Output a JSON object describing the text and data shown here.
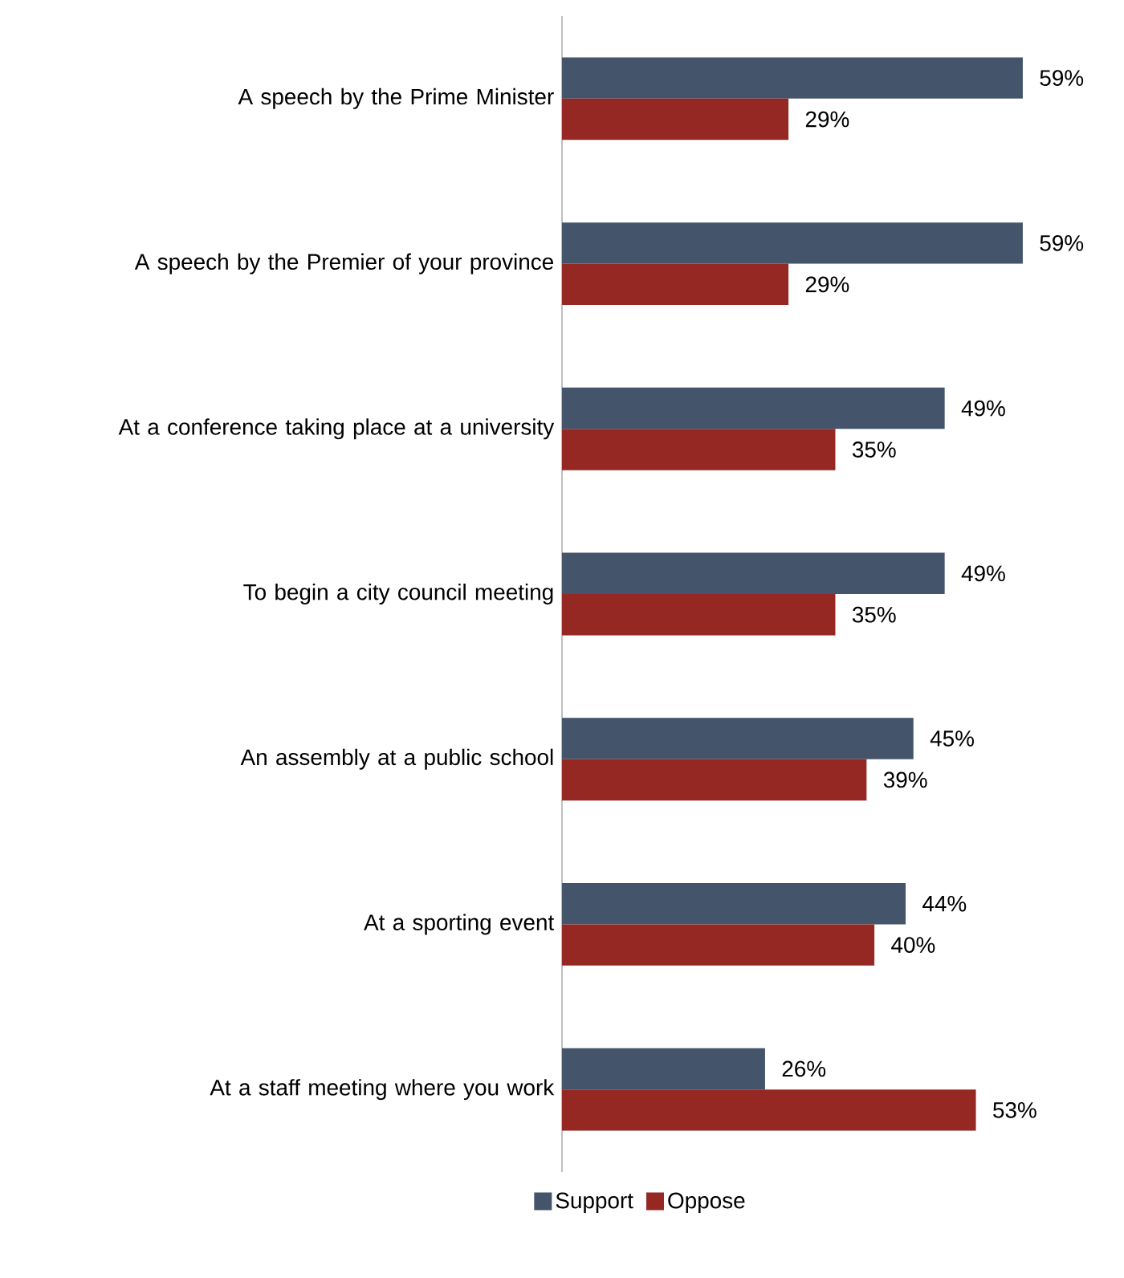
{
  "chart_data": {
    "type": "bar",
    "orientation": "horizontal",
    "legend": "bottom",
    "categories": [
      "A speech by the Prime Minister",
      "A speech by the Premier of your province",
      "At a conference taking place at a university",
      "To begin a city council meeting",
      "An assembly at a public school",
      "At a sporting event",
      "At a staff meeting where you work"
    ],
    "series": [
      {
        "name": "Support",
        "color": "#44546a",
        "values": [
          59,
          59,
          49,
          49,
          45,
          44,
          26
        ],
        "value_labels": [
          "59%",
          "59%",
          "49%",
          "49%",
          "45%",
          "44%",
          "26%"
        ]
      },
      {
        "name": "Oppose",
        "color": "#952822",
        "values": [
          29,
          29,
          35,
          35,
          39,
          40,
          53
        ],
        "value_labels": [
          "29%",
          "29%",
          "35%",
          "35%",
          "39%",
          "40%",
          "53%"
        ]
      }
    ]
  }
}
